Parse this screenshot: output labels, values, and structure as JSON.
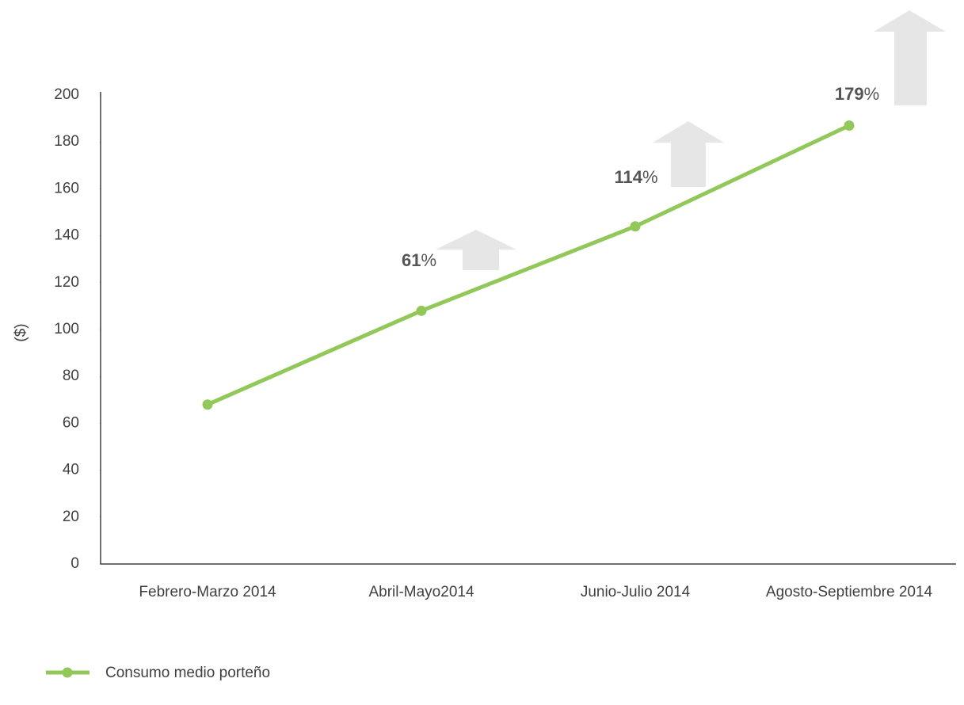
{
  "chart_data": {
    "type": "line",
    "y_label": "($)",
    "categories": [
      "Febrero-Marzo 2014",
      "Abril-Mayo2014",
      "Junio-Julio 2014",
      "Agosto-Septiembre 2014"
    ],
    "series": [
      {
        "name": "Consumo medio porteño",
        "color": "#92c85a",
        "values": [
          68,
          108,
          144,
          187
        ]
      }
    ],
    "ylim": [
      0,
      200
    ],
    "yticks": [
      0,
      20,
      40,
      60,
      80,
      100,
      120,
      140,
      160,
      180,
      200
    ],
    "annotations": [
      "61%",
      "114%",
      "179%"
    ],
    "legend": "bottom-left"
  }
}
